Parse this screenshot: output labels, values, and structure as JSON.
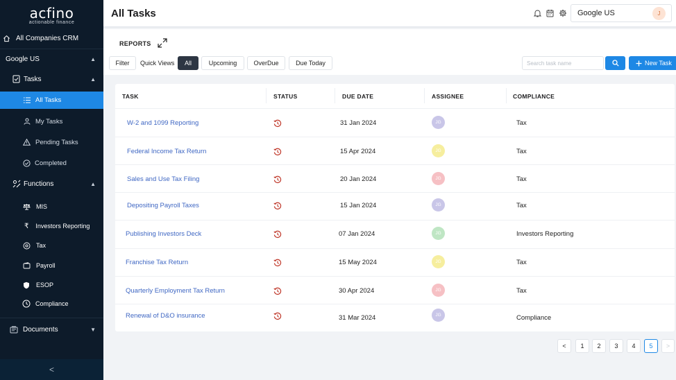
{
  "sidebar": {
    "brand": "acfino",
    "tagline": "actionable finance",
    "crm_label": "All Companies CRM",
    "company_label": "Google US",
    "tasks_label": "Tasks",
    "task_items": [
      "All Tasks",
      "My Tasks",
      "Pending Tasks",
      "Completed"
    ],
    "functions_label": "Functions",
    "function_items": [
      "MIS",
      "Investors Reporting",
      "Tax",
      "Payroll",
      "ESOP",
      "Compliance"
    ],
    "documents_label": "Documents",
    "collapse_glyph": "<"
  },
  "header": {
    "title": "All Tasks",
    "company": "Google US",
    "user_initial": "J",
    "icons": [
      "bell-icon",
      "calendar-icon",
      "gear-icon"
    ]
  },
  "toolbar": {
    "reports_label": "REPORTS",
    "filter_label": "Filter",
    "quick_views_label": "Quick Views",
    "views": [
      "All",
      "Upcoming",
      "OverDue",
      "Due Today"
    ],
    "active_view": "All",
    "search_placeholder": "Search task name",
    "new_task_label": "New Task"
  },
  "table": {
    "columns": [
      "TASK",
      "STATUS",
      "DUE DATE",
      "ASSIGNEE",
      "COMPLIANCE"
    ],
    "rows": [
      {
        "task": "W-2 and 1099 Reporting",
        "due": "31 Jan 2024",
        "assignee": "JG",
        "compliance": "Tax"
      },
      {
        "task": "Federal Income Tax Return",
        "due": "15 Apr 2024",
        "assignee": "JG",
        "compliance": "Tax"
      },
      {
        "task": "Sales and Use Tax Filing",
        "due": "20 Jan 2024",
        "assignee": "JG",
        "compliance": "Tax"
      },
      {
        "task": "Depositing Payroll Taxes",
        "due": "15 Jan 2024",
        "assignee": "JG",
        "compliance": "Tax"
      },
      {
        "task": "Publishing Investors Deck",
        "due": "07 Jan 2024",
        "assignee": "JG",
        "compliance": "Investors Reporting"
      },
      {
        "task": "Franchise Tax Return",
        "due": "15 May 2024",
        "assignee": "JG",
        "compliance": "Tax"
      },
      {
        "task": "Quarterly Employment Tax Return",
        "due": "30 Apr 2024",
        "assignee": "JG",
        "compliance": "Tax"
      },
      {
        "task": "Renewal of D&O insurance",
        "due": "31 Mar 2024",
        "assignee": "JG",
        "compliance": "Compliance"
      }
    ],
    "avatar_colors": [
      "#c9c6e8",
      "#f6ee9e",
      "#f6c0c4",
      "#c9c6e8",
      "#bfe6c4",
      "#f6ee9e",
      "#f6c0c4",
      "#c9c6e8"
    ],
    "status_color": "#c0392b"
  },
  "pagination": {
    "prev": "<",
    "pages": [
      "1",
      "2",
      "3",
      "4",
      "5"
    ],
    "active_page": "5",
    "next": ">"
  },
  "colors": {
    "sidebar_bg": "#0d1b2a",
    "accent": "#1e88e5",
    "link": "#3f67c3"
  }
}
